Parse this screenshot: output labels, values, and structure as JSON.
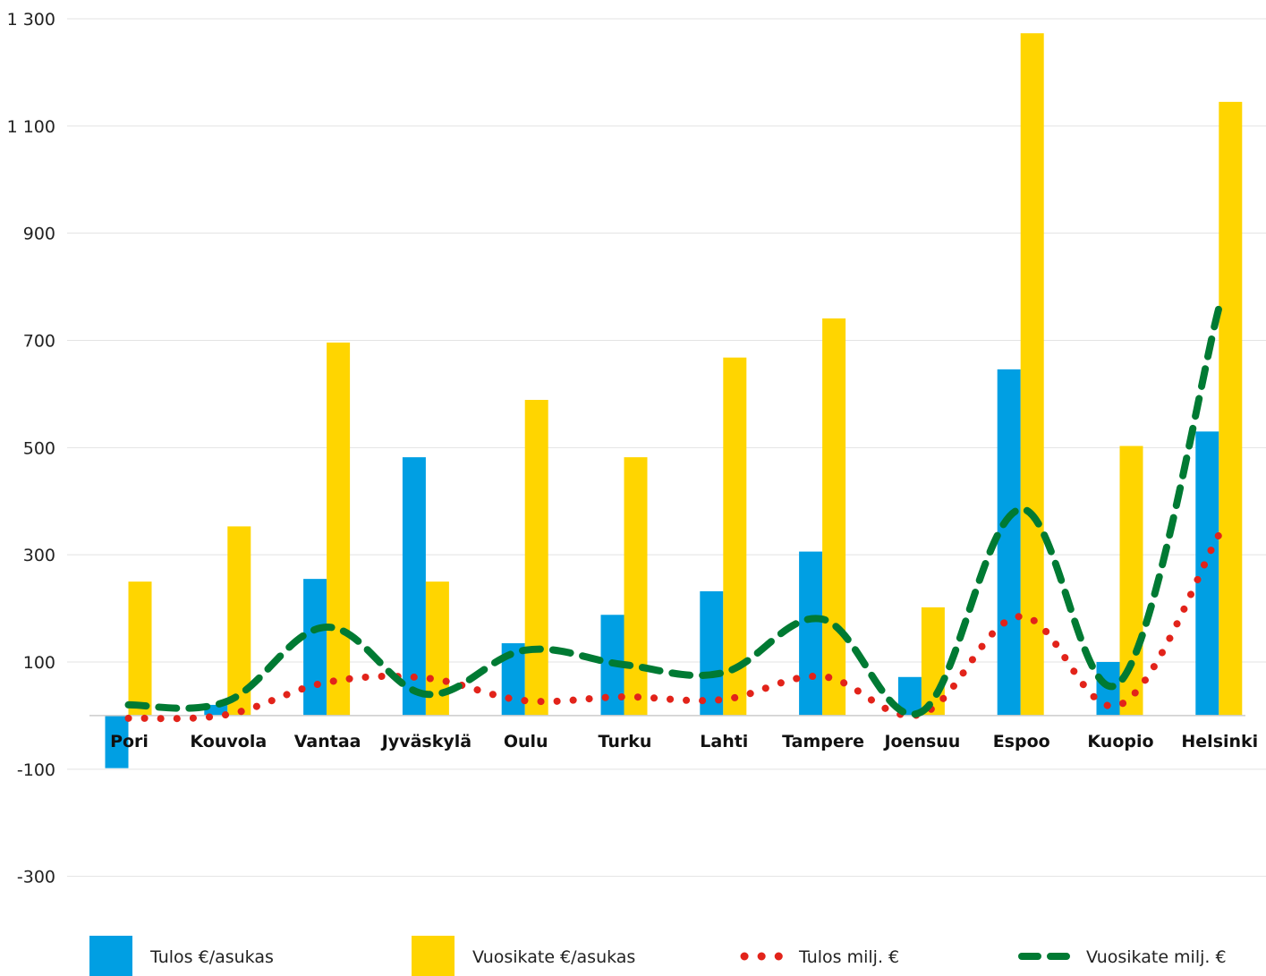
{
  "chart_data": {
    "type": "bar",
    "categories": [
      "Pori",
      "Kouvola",
      "Vantaa",
      "Jyväskylä",
      "Oulu",
      "Turku",
      "Lahti",
      "Tampere",
      "Joensuu",
      "Espoo",
      "Kuopio",
      "Helsinki"
    ],
    "yticks": [
      {
        "value": 1300,
        "label": "1 300"
      },
      {
        "value": 1100,
        "label": "1 100"
      },
      {
        "value": 900,
        "label": "900"
      },
      {
        "value": 700,
        "label": "700"
      },
      {
        "value": 500,
        "label": "500"
      },
      {
        "value": 300,
        "label": "300"
      },
      {
        "value": 100,
        "label": "100"
      },
      {
        "value": -100,
        "label": "-100"
      },
      {
        "value": -300,
        "label": "-300"
      }
    ],
    "ylim": [
      -300,
      1300
    ],
    "grid": true,
    "legend_position": "bottom",
    "series": [
      {
        "name": "Tulos €/asukas",
        "kind": "bar",
        "color": "#009fe3",
        "values": [
          -98,
          20,
          255,
          482,
          135,
          188,
          232,
          306,
          72,
          646,
          100,
          530
        ]
      },
      {
        "name": "Vuosikate €/asukas",
        "kind": "bar",
        "color": "#ffd500",
        "values": [
          250,
          353,
          696,
          250,
          589,
          482,
          668,
          741,
          202,
          1273,
          503,
          1145
        ]
      },
      {
        "name": "Tulos milj. €",
        "kind": "dotted-line",
        "color": "#e2231a",
        "values": [
          -5,
          2,
          62,
          70,
          28,
          35,
          30,
          73,
          3,
          185,
          20,
          337
        ]
      },
      {
        "name": "Vuosikate milj. €",
        "kind": "dashed-line",
        "color": "#007a33",
        "values": [
          20,
          27,
          165,
          40,
          122,
          95,
          80,
          180,
          7,
          385,
          62,
          760
        ]
      }
    ]
  }
}
